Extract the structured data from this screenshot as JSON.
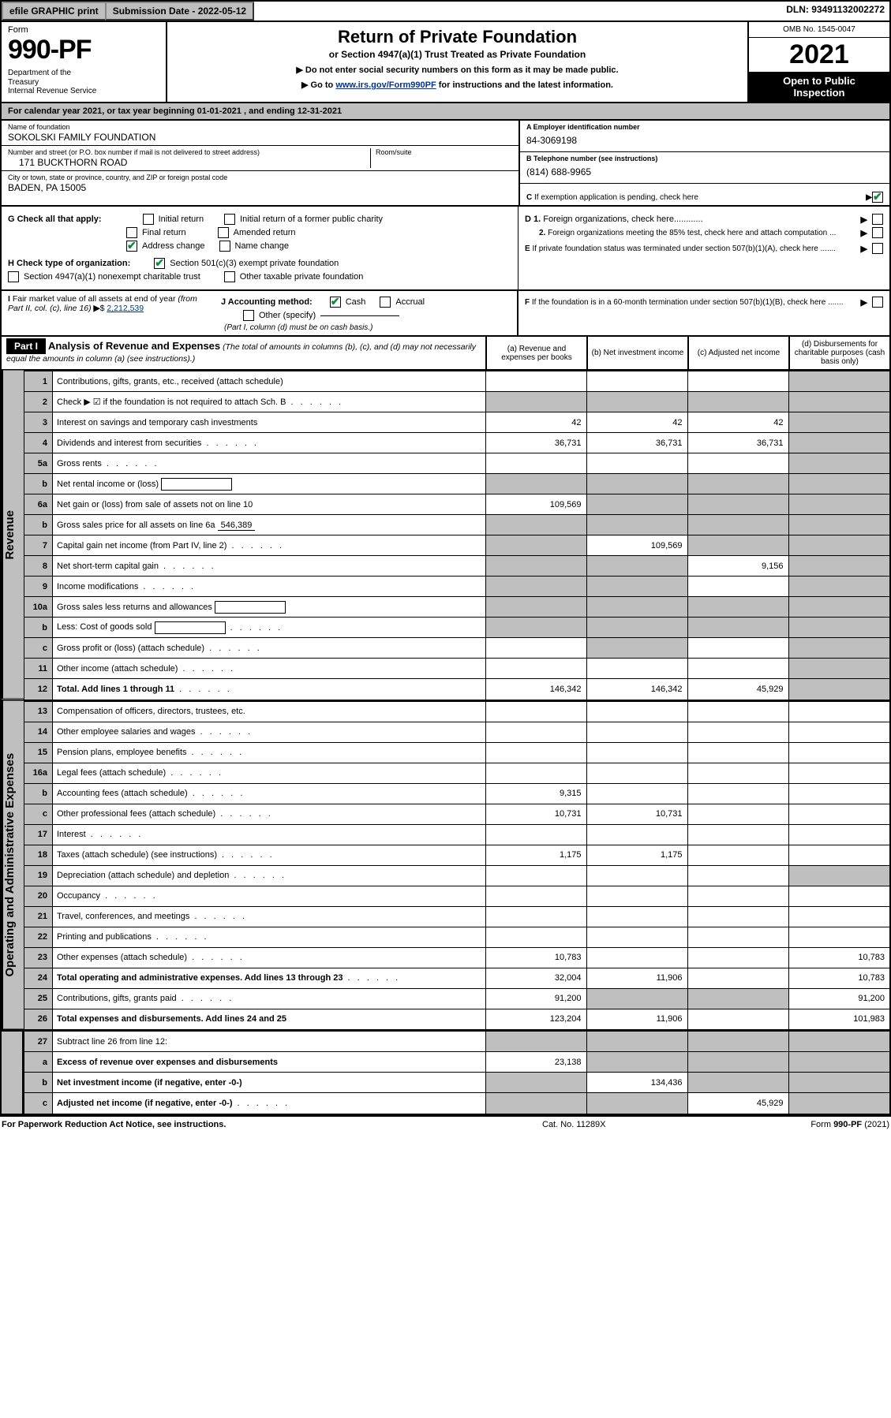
{
  "topbar": {
    "efile": "efile GRAPHIC print",
    "submission_label": "Submission Date - 2022-05-12",
    "dln": "DLN: 93491132002272"
  },
  "header": {
    "form_label": "Form",
    "form_number": "990-PF",
    "dept": "Department of the Treasury\nInternal Revenue Service",
    "title": "Return of Private Foundation",
    "subtitle": "or Section 4947(a)(1) Trust Treated as Private Foundation",
    "note1": "▶ Do not enter social security numbers on this form as it may be made public.",
    "note2_pre": "▶ Go to ",
    "note2_link": "www.irs.gov/Form990PF",
    "note2_post": " for instructions and the latest information.",
    "omb": "OMB No. 1545-0047",
    "year": "2021",
    "open": "Open to Public Inspection"
  },
  "calendar_year": "For calendar year 2021, or tax year beginning 01-01-2021              , and ending 12-31-2021",
  "entity": {
    "name_label": "Name of foundation",
    "name": "SOKOLSKI FAMILY FOUNDATION",
    "addr_label": "Number and street (or P.O. box number if mail is not delivered to street address)",
    "addr": "171 BUCKTHORN ROAD",
    "room_label": "Room/suite",
    "room": "",
    "city_label": "City or town, state or province, country, and ZIP or foreign postal code",
    "city": "BADEN, PA  15005",
    "ein_label": "A Employer identification number",
    "ein": "84-3069198",
    "phone_label": "B Telephone number (see instructions)",
    "phone": "(814) 688-9965",
    "c_label": "C If exemption application is pending, check here",
    "c_checked": true
  },
  "checks": {
    "g_label": "G Check all that apply:",
    "g_opts": [
      "Initial return",
      "Initial return of a former public charity",
      "Final return",
      "Amended return",
      "Address change",
      "Name change"
    ],
    "g_checked": [
      false,
      false,
      false,
      false,
      true,
      false
    ],
    "h_label": "H Check type of organization:",
    "h_opts": [
      "Section 501(c)(3) exempt private foundation",
      "Section 4947(a)(1) nonexempt charitable trust",
      "Other taxable private foundation"
    ],
    "h_checked": [
      true,
      false,
      false
    ],
    "i_label": "I Fair market value of all assets at end of year (from Part II, col. (c), line 16)",
    "i_value": "2,212,539",
    "j_label": "J Accounting method:",
    "j_cash": "Cash",
    "j_accrual": "Accrual",
    "j_other": "Other (specify)",
    "j_note": "(Part I, column (d) must be on cash basis.)",
    "j_cash_checked": true,
    "d1": "D 1. Foreign organizations, check here............",
    "d2": "2. Foreign organizations meeting the 85% test, check here and attach computation ...",
    "e": "E  If private foundation status was terminated under section 507(b)(1)(A), check here .......",
    "f": "F  If the foundation is in a 60-month termination under section 507(b)(1)(B), check here .......",
    "d1_checked": false,
    "d2_checked": false,
    "e_checked": false,
    "f_checked": false
  },
  "part1": {
    "label": "Part I",
    "title": "Analysis of Revenue and Expenses",
    "title_note": "(The total of amounts in columns (b), (c), and (d) may not necessarily equal the amounts in column (a) (see instructions).)",
    "col_a": "(a)   Revenue and expenses per books",
    "col_b": "(b)   Net investment income",
    "col_c": "(c)   Adjusted net income",
    "col_d": "(d)  Disbursements for charitable purposes (cash basis only)"
  },
  "vlabels": {
    "revenue": "Revenue",
    "expenses": "Operating and Administrative Expenses"
  },
  "rows": [
    {
      "n": "1",
      "desc": "Contributions, gifts, grants, etc., received (attach schedule)",
      "a": "",
      "b": "",
      "c": "",
      "d": "",
      "d_shade": true,
      "c_shade": false
    },
    {
      "n": "2",
      "desc": "Check ▶ ☑ if the foundation is not required to attach Sch. B",
      "dots": true,
      "a": "",
      "b": "",
      "c": "",
      "d": "",
      "a_shade": true,
      "b_shade": true,
      "c_shade": true,
      "d_shade": true
    },
    {
      "n": "3",
      "desc": "Interest on savings and temporary cash investments",
      "a": "42",
      "b": "42",
      "c": "42",
      "d": "",
      "d_shade": true
    },
    {
      "n": "4",
      "desc": "Dividends and interest from securities",
      "dots": true,
      "a": "36,731",
      "b": "36,731",
      "c": "36,731",
      "d": "",
      "d_shade": true
    },
    {
      "n": "5a",
      "desc": "Gross rents",
      "dots": true,
      "a": "",
      "b": "",
      "c": "",
      "d": "",
      "d_shade": true
    },
    {
      "n": "b",
      "desc": "Net rental income or (loss)",
      "inline_box": true,
      "a": "",
      "b": "",
      "c": "",
      "d": "",
      "a_shade": true,
      "b_shade": true,
      "c_shade": true,
      "d_shade": true
    },
    {
      "n": "6a",
      "desc": "Net gain or (loss) from sale of assets not on line 10",
      "a": "109,569",
      "b": "",
      "c": "",
      "d": "",
      "b_shade": true,
      "c_shade": true,
      "d_shade": true
    },
    {
      "n": "b",
      "desc": "Gross sales price for all assets on line 6a",
      "inline_val": "546,389",
      "underline": true,
      "a": "",
      "b": "",
      "c": "",
      "d": "",
      "a_shade": true,
      "b_shade": true,
      "c_shade": true,
      "d_shade": true
    },
    {
      "n": "7",
      "desc": "Capital gain net income (from Part IV, line 2)",
      "dots": true,
      "a": "",
      "b": "109,569",
      "c": "",
      "d": "",
      "a_shade": true,
      "c_shade": true,
      "d_shade": true
    },
    {
      "n": "8",
      "desc": "Net short-term capital gain",
      "dots": true,
      "a": "",
      "b": "",
      "c": "9,156",
      "d": "",
      "a_shade": true,
      "b_shade": true,
      "d_shade": true
    },
    {
      "n": "9",
      "desc": "Income modifications",
      "dots": true,
      "a": "",
      "b": "",
      "c": "",
      "d": "",
      "a_shade": true,
      "b_shade": true,
      "d_shade": true
    },
    {
      "n": "10a",
      "desc": "Gross sales less returns and allowances",
      "inline_box": true,
      "a": "",
      "b": "",
      "c": "",
      "d": "",
      "a_shade": true,
      "b_shade": true,
      "c_shade": true,
      "d_shade": true
    },
    {
      "n": "b",
      "desc": "Less: Cost of goods sold",
      "dots": true,
      "inline_box": true,
      "a": "",
      "b": "",
      "c": "",
      "d": "",
      "a_shade": true,
      "b_shade": true,
      "c_shade": true,
      "d_shade": true
    },
    {
      "n": "c",
      "desc": "Gross profit or (loss) (attach schedule)",
      "dots": true,
      "a": "",
      "b": "",
      "c": "",
      "d": "",
      "b_shade": true,
      "d_shade": true
    },
    {
      "n": "11",
      "desc": "Other income (attach schedule)",
      "dots": true,
      "a": "",
      "b": "",
      "c": "",
      "d": "",
      "d_shade": true
    },
    {
      "n": "12",
      "desc": "Total. Add lines 1 through 11",
      "bold": true,
      "dots": true,
      "a": "146,342",
      "b": "146,342",
      "c": "45,929",
      "d": "",
      "d_shade": true
    }
  ],
  "rows2": [
    {
      "n": "13",
      "desc": "Compensation of officers, directors, trustees, etc.",
      "a": "",
      "b": "",
      "c": "",
      "d": ""
    },
    {
      "n": "14",
      "desc": "Other employee salaries and wages",
      "dots": true,
      "a": "",
      "b": "",
      "c": "",
      "d": ""
    },
    {
      "n": "15",
      "desc": "Pension plans, employee benefits",
      "dots": true,
      "a": "",
      "b": "",
      "c": "",
      "d": ""
    },
    {
      "n": "16a",
      "desc": "Legal fees (attach schedule)",
      "dots": true,
      "a": "",
      "b": "",
      "c": "",
      "d": ""
    },
    {
      "n": "b",
      "desc": "Accounting fees (attach schedule)",
      "dots": true,
      "a": "9,315",
      "b": "",
      "c": "",
      "d": ""
    },
    {
      "n": "c",
      "desc": "Other professional fees (attach schedule)",
      "dots": true,
      "a": "10,731",
      "b": "10,731",
      "c": "",
      "d": ""
    },
    {
      "n": "17",
      "desc": "Interest",
      "dots": true,
      "a": "",
      "b": "",
      "c": "",
      "d": ""
    },
    {
      "n": "18",
      "desc": "Taxes (attach schedule) (see instructions)",
      "dots": true,
      "a": "1,175",
      "b": "1,175",
      "c": "",
      "d": ""
    },
    {
      "n": "19",
      "desc": "Depreciation (attach schedule) and depletion",
      "dots": true,
      "a": "",
      "b": "",
      "c": "",
      "d": "",
      "d_shade": true
    },
    {
      "n": "20",
      "desc": "Occupancy",
      "dots": true,
      "a": "",
      "b": "",
      "c": "",
      "d": ""
    },
    {
      "n": "21",
      "desc": "Travel, conferences, and meetings",
      "dots": true,
      "a": "",
      "b": "",
      "c": "",
      "d": ""
    },
    {
      "n": "22",
      "desc": "Printing and publications",
      "dots": true,
      "a": "",
      "b": "",
      "c": "",
      "d": ""
    },
    {
      "n": "23",
      "desc": "Other expenses (attach schedule)",
      "dots": true,
      "a": "10,783",
      "b": "",
      "c": "",
      "d": "10,783"
    },
    {
      "n": "24",
      "desc": "Total operating and administrative expenses. Add lines 13 through 23",
      "bold": true,
      "dots": true,
      "a": "32,004",
      "b": "11,906",
      "c": "",
      "d": "10,783"
    },
    {
      "n": "25",
      "desc": "Contributions, gifts, grants paid",
      "dots": true,
      "a": "91,200",
      "b": "",
      "c": "",
      "d": "91,200",
      "b_shade": true,
      "c_shade": true
    },
    {
      "n": "26",
      "desc": "Total expenses and disbursements. Add lines 24 and 25",
      "bold": true,
      "a": "123,204",
      "b": "11,906",
      "c": "",
      "d": "101,983"
    }
  ],
  "rows3": [
    {
      "n": "27",
      "desc": "Subtract line 26 from line 12:",
      "a": "",
      "b": "",
      "c": "",
      "d": "",
      "a_shade": true,
      "b_shade": true,
      "c_shade": true,
      "d_shade": true
    },
    {
      "n": "a",
      "desc": "Excess of revenue over expenses and disbursements",
      "bold": true,
      "a": "23,138",
      "b": "",
      "c": "",
      "d": "",
      "b_shade": true,
      "c_shade": true,
      "d_shade": true
    },
    {
      "n": "b",
      "desc": "Net investment income (if negative, enter -0-)",
      "bold": true,
      "a": "",
      "b": "134,436",
      "c": "",
      "d": "",
      "a_shade": true,
      "c_shade": true,
      "d_shade": true
    },
    {
      "n": "c",
      "desc": "Adjusted net income (if negative, enter -0-)",
      "bold": true,
      "dots": true,
      "a": "",
      "b": "",
      "c": "45,929",
      "d": "",
      "a_shade": true,
      "b_shade": true,
      "d_shade": true
    }
  ],
  "footer": {
    "left": "For Paperwork Reduction Act Notice, see instructions.",
    "cat": "Cat. No. 11289X",
    "form": "Form 990-PF (2021)"
  },
  "colors": {
    "gray": "#bfbfbf",
    "link": "#003399",
    "check_green": "#0a8a3a"
  }
}
